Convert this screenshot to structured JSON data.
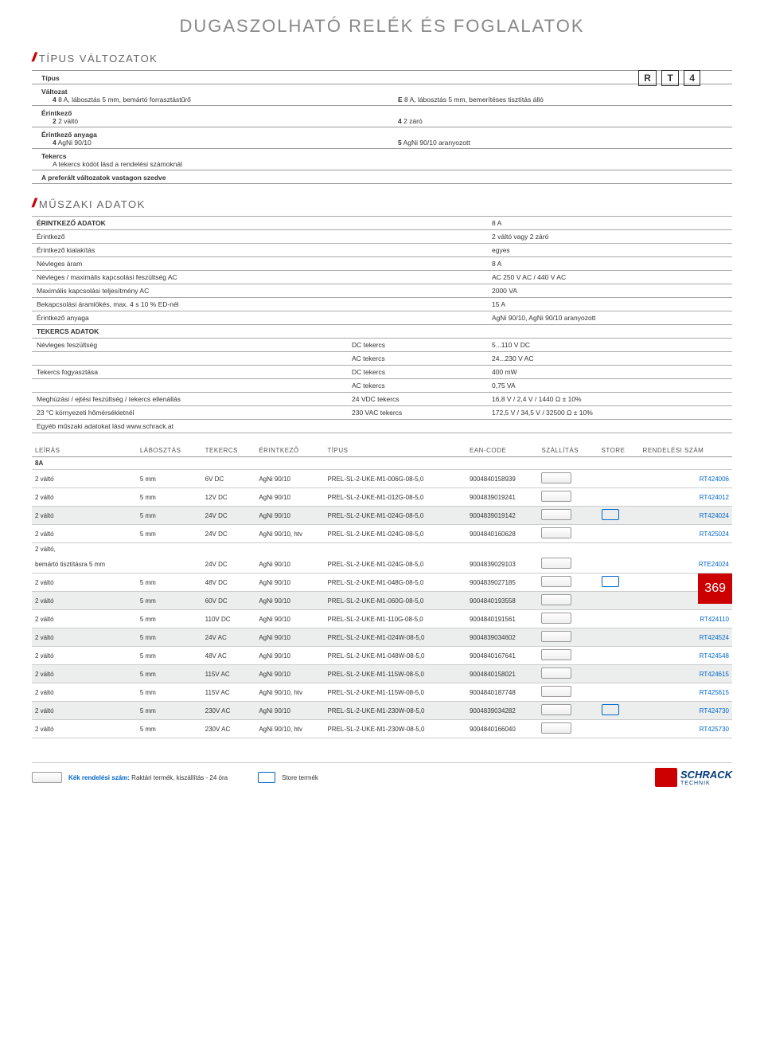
{
  "page": {
    "title": "DUGASZOLHATÓ RELÉK ÉS FOGLALATOK",
    "number": "369"
  },
  "type_variants": {
    "heading": "TÍPUS VÁLTOZATOK",
    "boxes": [
      "R",
      "T",
      "4"
    ],
    "rows": [
      {
        "label": "Típus",
        "sub": []
      },
      {
        "label": "Változat",
        "sub": [
          {
            "k": "4",
            "v": "8 A, lábosztás 5 mm, bemártó forrasztástűrő"
          },
          {
            "k": "E",
            "v": "8 A, lábosztás 5 mm, bemerítéses tisztítás álló"
          }
        ]
      },
      {
        "label": "Érintkező",
        "sub": [
          {
            "k": "2",
            "v": "2 váltó"
          },
          {
            "k": "4",
            "v": "2 záró"
          }
        ]
      },
      {
        "label": "Érintkező anyaga",
        "sub": [
          {
            "k": "4",
            "v": "AgNi 90/10"
          },
          {
            "k": "5",
            "v": "AgNi 90/10 aranyozott"
          }
        ]
      },
      {
        "label": "Tekercs",
        "sub": [
          {
            "k": "",
            "v": "A tekercs kódot lásd a rendelési számoknál"
          }
        ]
      },
      {
        "label": "A preferált változatok vastagon szedve",
        "sub": []
      }
    ]
  },
  "tech": {
    "heading": "MŰSZAKI ADATOK",
    "rows": [
      {
        "hdr": true,
        "a": "ÉRINTKEZŐ ADATOK",
        "b": "",
        "c": "8 A"
      },
      {
        "a": "Érintkező",
        "b": "",
        "c": "2 váltó vagy 2 záró"
      },
      {
        "a": "Érintkező kialakítás",
        "b": "",
        "c": "egyes"
      },
      {
        "a": "Névleges áram",
        "b": "",
        "c": "8 A"
      },
      {
        "a": "Névleges / maximális kapcsolási feszültség AC",
        "b": "",
        "c": "AC 250 V AC / 440 V AC"
      },
      {
        "a": "Maximális kapcsolási teljesítmény AC",
        "b": "",
        "c": "2000 VA"
      },
      {
        "a": "Bekapcsolási áramlökés, max. 4 s 10 % ED-nél",
        "b": "",
        "c": "15 A"
      },
      {
        "a": "Érintkező anyaga",
        "b": "",
        "c": "AgNi 90/10, AgNi 90/10 aranyozott"
      },
      {
        "hdr": true,
        "a": "TEKERCS ADATOK",
        "b": "",
        "c": ""
      },
      {
        "a": "Névleges feszültség",
        "b": "DC tekercs",
        "c": "5...110 V DC"
      },
      {
        "a": "",
        "b": "AC tekercs",
        "c": "24...230 V AC"
      },
      {
        "a": "Tekercs fogyasztása",
        "b": "DC tekercs",
        "c": "400 mW"
      },
      {
        "a": "",
        "b": "AC tekercs",
        "c": "0,75 VA"
      },
      {
        "a": "Meghúzási / ejtési feszültség / tekercs ellenállás",
        "b": "24 VDC tekercs",
        "c": "16,8 V / 2,4 V / 1440 Ω ± 10%"
      },
      {
        "a": "23 °C környezeti hőmérsékletnél",
        "b": "230 VAC tekercs",
        "c": "172,5 V / 34,5 V / 32500 Ω ± 10%"
      },
      {
        "a": "Egyéb műszaki adatokat lásd www.schrack.at",
        "b": "",
        "c": ""
      }
    ]
  },
  "products": {
    "columns": [
      "LEÍRÁS",
      "LÁBOSZTÁS",
      "TEKERCS",
      "ÉRINTKEZŐ",
      "TÍPUS",
      "EAN-CODE",
      "SZÁLLÍTÁS",
      "STORE",
      "RENDELÉSI SZÁM"
    ],
    "group": "8A",
    "rows": [
      {
        "alt": false,
        "c": [
          "2 váltó",
          "5 mm",
          "6V DC",
          "AgNi 90/10",
          "PREL-SL-2-UKE-M1-006G-08-5,0",
          "9004840158939",
          "t",
          "",
          "RT424006"
        ]
      },
      {
        "alt": false,
        "c": [
          "2 váltó",
          "5 mm",
          "12V DC",
          "AgNi 90/10",
          "PREL-SL-2-UKE-M1-012G-08-5,0",
          "9004839019241",
          "t",
          "",
          "RT424012"
        ]
      },
      {
        "alt": true,
        "c": [
          "2 váltó",
          "5 mm",
          "24V DC",
          "AgNi 90/10",
          "PREL-SL-2-UKE-M1-024G-08-5,0",
          "9004839019142",
          "t",
          "s",
          "RT424024"
        ]
      },
      {
        "alt": false,
        "c": [
          "2 váltó",
          "5 mm",
          "24V DC",
          "AgNi 90/10, htv",
          "PREL-SL-2-UKE-M1-024G-08-5,0",
          "9004840160628",
          "t",
          "",
          "RT425024"
        ]
      },
      {
        "alt": false,
        "multi": true,
        "c": [
          "2 váltó,",
          "",
          "",
          "",
          "",
          "",
          "",
          "",
          ""
        ]
      },
      {
        "alt": false,
        "c": [
          "bemártó tisztításra 5 mm",
          "",
          "24V DC",
          "AgNi 90/10",
          "PREL-SL-2-UKE-M1-024G-08-5,0",
          "9004839029103",
          "t",
          "",
          "RTE24024"
        ]
      },
      {
        "alt": false,
        "c": [
          "2 váltó",
          "5 mm",
          "48V DC",
          "AgNi 90/10",
          "PREL-SL-2-UKE-M1-048G-08-5,0",
          "9004839027185",
          "t",
          "s",
          "RT424048"
        ]
      },
      {
        "alt": true,
        "c": [
          "2 váltó",
          "5 mm",
          "60V DC",
          "AgNi 90/10",
          "PREL-SL-2-UKE-M1-060G-08-5,0",
          "9004840193558",
          "t",
          "",
          "RT424060"
        ]
      },
      {
        "alt": false,
        "c": [
          "2 váltó",
          "5 mm",
          "110V DC",
          "AgNi 90/10",
          "PREL-SL-2-UKE-M1-110G-08-5,0",
          "9004840191561",
          "t",
          "",
          "RT424110"
        ]
      },
      {
        "alt": true,
        "c": [
          "2 váltó",
          "5 mm",
          "24V AC",
          "AgNi 90/10",
          "PREL-SL-2-UKE-M1-024W-08-5,0",
          "9004839034602",
          "t",
          "",
          "RT424524"
        ]
      },
      {
        "alt": false,
        "c": [
          "2 váltó",
          "5 mm",
          "48V AC",
          "AgNi 90/10",
          "PREL-SL-2-UKE-M1-048W-08-5,0",
          "9004840167641",
          "t",
          "",
          "RT424548"
        ]
      },
      {
        "alt": true,
        "c": [
          "2 váltó",
          "5 mm",
          "115V AC",
          "AgNi 90/10",
          "PREL-SL-2-UKE-M1-115W-08-5,0",
          "9004840158021",
          "t",
          "",
          "RT424615"
        ]
      },
      {
        "alt": false,
        "c": [
          "2 váltó",
          "5 mm",
          "115V AC",
          "AgNi 90/10, htv",
          "PREL-SL-2-UKE-M1-115W-08-5,0",
          "9004840187748",
          "t",
          "",
          "RT425615"
        ]
      },
      {
        "alt": true,
        "c": [
          "2 váltó",
          "5 mm",
          "230V AC",
          "AgNi 90/10",
          "PREL-SL-2-UKE-M1-230W-08-5,0",
          "9004839034282",
          "t",
          "s",
          "RT424730"
        ]
      },
      {
        "alt": false,
        "c": [
          "2 váltó",
          "5 mm",
          "230V AC",
          "AgNi 90/10, htv",
          "PREL-SL-2-UKE-M1-230W-08-5,0",
          "9004840166040",
          "t",
          "",
          "RT425730"
        ]
      }
    ]
  },
  "footer": {
    "blue_label": "Kék rendelési szám:",
    "stock_text": "Raktári termék, kiszállítás - 24 óra",
    "store_text": "Store termék",
    "brand": "SCHRACK",
    "brand_sub": "TECHNIK"
  }
}
